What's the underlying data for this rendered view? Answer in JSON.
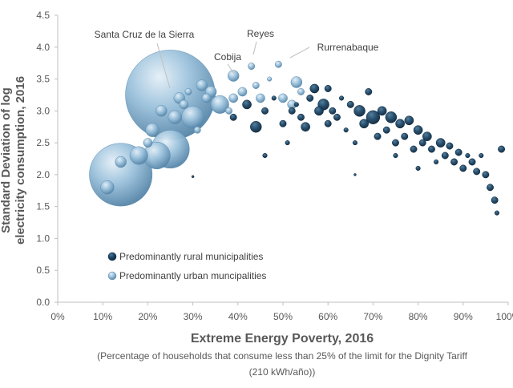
{
  "chart_data": {
    "type": "scatter",
    "xlabel": "Extreme Energy Poverty, 2016",
    "xlabel_note_line1": "(Percentage of households that consume less than 25% of the limit for the Dignity Tariff",
    "xlabel_note_line2": "(210 kWh/año))",
    "ylabel_line1": "Standard Deviation of log",
    "ylabel_line2": "electricity consumption, 2016",
    "xlim": [
      0,
      100
    ],
    "ylim": [
      0,
      4.5
    ],
    "x_ticks": [
      "0%",
      "10%",
      "20%",
      "30%",
      "40%",
      "50%",
      "60%",
      "70%",
      "80%",
      "90%",
      "100%"
    ],
    "y_ticks": [
      "0.0",
      "0.5",
      "1.0",
      "1.5",
      "2.0",
      "2.5",
      "3.0",
      "3.5",
      "4.0",
      "4.5"
    ],
    "grid": false,
    "legend_position": "bottom-left",
    "colors": {
      "rural": "#14324d",
      "urban": "#8db4cf",
      "axis": "#bfbfbf",
      "text": "#595959"
    },
    "annotations": [
      {
        "label": "Santa Cruz de la Sierra",
        "x": 25,
        "y": 3.25
      },
      {
        "label": "Cobija",
        "x": 39,
        "y": 3.55
      },
      {
        "label": "Reyes",
        "x": 43,
        "y": 3.7
      },
      {
        "label": "Rurrenabaque",
        "x": 49,
        "y": 3.73
      }
    ],
    "series": [
      {
        "name": "Predominantly urban muncipalities",
        "color": "#8db4cf",
        "points": [
          {
            "x": 25,
            "y": 3.25,
            "size": 40
          },
          {
            "x": 14,
            "y": 2.0,
            "size": 28
          },
          {
            "x": 25,
            "y": 2.4,
            "size": 17
          },
          {
            "x": 22,
            "y": 2.3,
            "size": 12
          },
          {
            "x": 30,
            "y": 2.9,
            "size": 10
          },
          {
            "x": 18,
            "y": 2.3,
            "size": 8
          },
          {
            "x": 11,
            "y": 1.8,
            "size": 6
          },
          {
            "x": 14,
            "y": 2.2,
            "size": 5
          },
          {
            "x": 21,
            "y": 2.7,
            "size": 6
          },
          {
            "x": 23,
            "y": 3.0,
            "size": 5
          },
          {
            "x": 27,
            "y": 3.2,
            "size": 5
          },
          {
            "x": 28,
            "y": 3.1,
            "size": 4
          },
          {
            "x": 32,
            "y": 3.4,
            "size": 5
          },
          {
            "x": 34,
            "y": 3.3,
            "size": 5
          },
          {
            "x": 36,
            "y": 3.1,
            "size": 8
          },
          {
            "x": 39,
            "y": 3.55,
            "size": 5
          },
          {
            "x": 39,
            "y": 3.2,
            "size": 4
          },
          {
            "x": 41,
            "y": 3.3,
            "size": 4
          },
          {
            "x": 43,
            "y": 3.7,
            "size": 3
          },
          {
            "x": 44,
            "y": 3.4,
            "size": 3
          },
          {
            "x": 45,
            "y": 3.2,
            "size": 4
          },
          {
            "x": 49,
            "y": 3.73,
            "size": 3
          },
          {
            "x": 50,
            "y": 3.2,
            "size": 4
          },
          {
            "x": 52,
            "y": 3.1,
            "size": 4
          },
          {
            "x": 53,
            "y": 3.45,
            "size": 5
          },
          {
            "x": 54,
            "y": 3.3,
            "size": 3
          },
          {
            "x": 33,
            "y": 3.2,
            "size": 4
          },
          {
            "x": 29,
            "y": 3.3,
            "size": 3
          },
          {
            "x": 38,
            "y": 3.0,
            "size": 3
          },
          {
            "x": 31,
            "y": 2.7,
            "size": 3
          },
          {
            "x": 20,
            "y": 2.5,
            "size": 4
          },
          {
            "x": 26,
            "y": 2.9,
            "size": 6
          },
          {
            "x": 47,
            "y": 3.5,
            "size": 2
          }
        ]
      },
      {
        "name": "Predominantly rural municipalities",
        "color": "#14324d",
        "points": [
          {
            "x": 39,
            "y": 2.9,
            "size": 3
          },
          {
            "x": 42,
            "y": 3.1,
            "size": 4
          },
          {
            "x": 44,
            "y": 2.75,
            "size": 5
          },
          {
            "x": 46,
            "y": 3.0,
            "size": 3
          },
          {
            "x": 46,
            "y": 2.3,
            "size": 2
          },
          {
            "x": 48,
            "y": 3.2,
            "size": 2
          },
          {
            "x": 50,
            "y": 2.8,
            "size": 3
          },
          {
            "x": 52,
            "y": 3.0,
            "size": 3
          },
          {
            "x": 54,
            "y": 2.9,
            "size": 3
          },
          {
            "x": 55,
            "y": 2.75,
            "size": 4
          },
          {
            "x": 56,
            "y": 3.2,
            "size": 3
          },
          {
            "x": 57,
            "y": 3.35,
            "size": 4
          },
          {
            "x": 58,
            "y": 3.0,
            "size": 4
          },
          {
            "x": 59,
            "y": 3.1,
            "size": 5
          },
          {
            "x": 60,
            "y": 2.8,
            "size": 3
          },
          {
            "x": 61,
            "y": 3.0,
            "size": 3
          },
          {
            "x": 62,
            "y": 2.9,
            "size": 3
          },
          {
            "x": 63,
            "y": 3.2,
            "size": 2
          },
          {
            "x": 64,
            "y": 2.7,
            "size": 2
          },
          {
            "x": 65,
            "y": 3.1,
            "size": 3
          },
          {
            "x": 66,
            "y": 2.5,
            "size": 2
          },
          {
            "x": 66,
            "y": 2.0,
            "size": 1
          },
          {
            "x": 67,
            "y": 3.0,
            "size": 5
          },
          {
            "x": 68,
            "y": 2.8,
            "size": 4
          },
          {
            "x": 69,
            "y": 3.3,
            "size": 3
          },
          {
            "x": 70,
            "y": 2.9,
            "size": 6
          },
          {
            "x": 71,
            "y": 2.6,
            "size": 3
          },
          {
            "x": 72,
            "y": 3.0,
            "size": 4
          },
          {
            "x": 73,
            "y": 2.7,
            "size": 3
          },
          {
            "x": 74,
            "y": 2.9,
            "size": 5
          },
          {
            "x": 75,
            "y": 2.5,
            "size": 3
          },
          {
            "x": 76,
            "y": 2.8,
            "size": 4
          },
          {
            "x": 77,
            "y": 2.6,
            "size": 3
          },
          {
            "x": 78,
            "y": 2.85,
            "size": 4
          },
          {
            "x": 79,
            "y": 2.4,
            "size": 3
          },
          {
            "x": 80,
            "y": 2.7,
            "size": 4
          },
          {
            "x": 81,
            "y": 2.5,
            "size": 3
          },
          {
            "x": 82,
            "y": 2.6,
            "size": 4
          },
          {
            "x": 83,
            "y": 2.4,
            "size": 3
          },
          {
            "x": 84,
            "y": 2.2,
            "size": 2
          },
          {
            "x": 85,
            "y": 2.5,
            "size": 4
          },
          {
            "x": 86,
            "y": 2.3,
            "size": 3
          },
          {
            "x": 87,
            "y": 2.45,
            "size": 3
          },
          {
            "x": 88,
            "y": 2.2,
            "size": 3
          },
          {
            "x": 89,
            "y": 2.35,
            "size": 3
          },
          {
            "x": 90,
            "y": 2.1,
            "size": 3
          },
          {
            "x": 91,
            "y": 2.3,
            "size": 2
          },
          {
            "x": 92,
            "y": 2.2,
            "size": 3
          },
          {
            "x": 93,
            "y": 2.05,
            "size": 3
          },
          {
            "x": 94,
            "y": 2.3,
            "size": 2
          },
          {
            "x": 95,
            "y": 2.0,
            "size": 3
          },
          {
            "x": 96,
            "y": 1.8,
            "size": 3
          },
          {
            "x": 97,
            "y": 1.6,
            "size": 3
          },
          {
            "x": 97.5,
            "y": 1.4,
            "size": 2
          },
          {
            "x": 98.5,
            "y": 2.4,
            "size": 3
          },
          {
            "x": 53,
            "y": 3.1,
            "size": 2
          },
          {
            "x": 51,
            "y": 2.5,
            "size": 2
          },
          {
            "x": 60,
            "y": 3.35,
            "size": 3
          },
          {
            "x": 75,
            "y": 2.3,
            "size": 2
          },
          {
            "x": 80,
            "y": 2.1,
            "size": 2
          },
          {
            "x": 30,
            "y": 1.97,
            "size": 1
          }
        ]
      }
    ]
  }
}
